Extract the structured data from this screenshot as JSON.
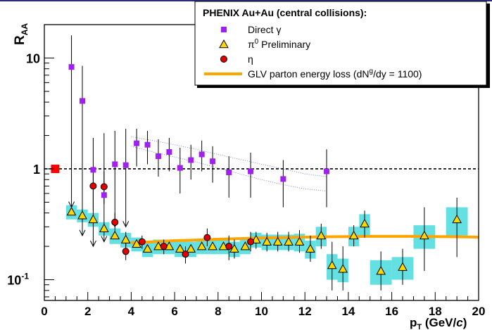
{
  "chart_data": {
    "type": "scatter",
    "title": "PHENIX Au+Au (central collisions):",
    "xlabel": "p_T (GeV/c)",
    "ylabel": "R_AA",
    "xlim": [
      0,
      20
    ],
    "ylim": [
      0.065,
      20
    ],
    "yscale": "log",
    "reference_line": 1,
    "x_ticks": [
      {
        "value": 0,
        "label": "0"
      },
      {
        "value": 2,
        "label": "2"
      },
      {
        "value": 4,
        "label": "4"
      },
      {
        "value": 6,
        "label": "6"
      },
      {
        "value": 8,
        "label": "8"
      },
      {
        "value": 10,
        "label": "10"
      },
      {
        "value": 12,
        "label": "12"
      },
      {
        "value": 14,
        "label": "14"
      },
      {
        "value": 16,
        "label": "16"
      },
      {
        "value": 18,
        "label": "18"
      },
      {
        "value": 20,
        "label": "20"
      }
    ],
    "y_ticks": [
      {
        "value": 0.1,
        "label": "10",
        "sup": "-1"
      },
      {
        "value": 1,
        "label": "1",
        "sup": ""
      },
      {
        "value": 10,
        "label": "10",
        "sup": ""
      }
    ],
    "legend": {
      "title": "PHENIX Au+Au (central collisions):",
      "entries": [
        {
          "label": "Direct γ",
          "marker": "square",
          "color": "#a020f0"
        },
        {
          "label": "π",
          "sup": "0",
          "label_after": " Preliminary",
          "marker": "triangle",
          "color": "#ffd700"
        },
        {
          "label": "η",
          "marker": "circle",
          "color": "#e00000"
        },
        {
          "label": "GLV parton energy loss (dN",
          "sup": "g",
          "label_after": "/dy = 1100)",
          "marker": "line",
          "color": "#ffa500"
        }
      ]
    },
    "norm_box": {
      "x": 0.5,
      "y": 1.0,
      "color": "#ff0000"
    },
    "series": [
      {
        "name": "Direct γ",
        "marker": "square",
        "color": "#a020f0",
        "points": [
          {
            "x": 1.25,
            "y": 8.3,
            "lo": 0.45,
            "hi": 16,
            "limit": true
          },
          {
            "x": 1.75,
            "y": 4.1,
            "lo": 0.25,
            "hi": 8.5,
            "limit": true
          },
          {
            "x": 2.25,
            "y": 0.98,
            "lo": 0.2,
            "hi": 1.9,
            "limit": true
          },
          {
            "x": 2.75,
            "y": 0.58,
            "lo": 0.22,
            "hi": 2.1,
            "limit": true
          },
          {
            "x": 3.25,
            "y": 1.1,
            "lo": 0.3,
            "hi": 2.2,
            "limit": true
          },
          {
            "x": 3.75,
            "y": 1.08,
            "lo": 0.3,
            "hi": 2.3,
            "limit": true
          },
          {
            "x": 4.25,
            "y": 1.7,
            "lo": 1.05,
            "hi": 2.3
          },
          {
            "x": 4.75,
            "y": 1.65,
            "lo": 1.1,
            "hi": 2.2
          },
          {
            "x": 5.25,
            "y": 1.3,
            "lo": 0.85,
            "hi": 1.85
          },
          {
            "x": 5.75,
            "y": 1.42,
            "lo": 0.95,
            "hi": 1.9
          },
          {
            "x": 6.25,
            "y": 1.02,
            "lo": 0.6,
            "hi": 1.55
          },
          {
            "x": 6.75,
            "y": 1.2,
            "lo": 0.8,
            "hi": 1.65
          },
          {
            "x": 7.25,
            "y": 1.35,
            "lo": 0.95,
            "hi": 1.8
          },
          {
            "x": 7.75,
            "y": 1.17,
            "lo": 0.75,
            "hi": 1.6
          },
          {
            "x": 8.5,
            "y": 0.93,
            "lo": 0.55,
            "hi": 1.3
          },
          {
            "x": 9.5,
            "y": 0.95,
            "lo": 0.55,
            "hi": 1.4
          },
          {
            "x": 11.0,
            "y": 0.81,
            "lo": 0.45,
            "hi": 1.2
          },
          {
            "x": 13.0,
            "y": 0.95,
            "lo": 0.45,
            "hi": 1.5
          }
        ]
      },
      {
        "name": "π0 Preliminary",
        "marker": "triangle",
        "color": "#ffd700",
        "band_color": "#30d5d8",
        "points": [
          {
            "x": 1.25,
            "y": 0.41,
            "syst": 0.06
          },
          {
            "x": 1.75,
            "y": 0.38,
            "syst": 0.05
          },
          {
            "x": 2.25,
            "y": 0.35,
            "syst": 0.05
          },
          {
            "x": 2.75,
            "y": 0.29,
            "syst": 0.04
          },
          {
            "x": 3.25,
            "y": 0.25,
            "syst": 0.04
          },
          {
            "x": 3.75,
            "y": 0.23,
            "syst": 0.035,
            "lo": 0.2,
            "hi": 0.27
          },
          {
            "x": 4.25,
            "y": 0.21,
            "syst": 0.03
          },
          {
            "x": 4.75,
            "y": 0.19,
            "syst": 0.03
          },
          {
            "x": 5.25,
            "y": 0.2,
            "syst": 0.03
          },
          {
            "x": 5.75,
            "y": 0.2,
            "syst": 0.03
          },
          {
            "x": 6.25,
            "y": 0.19,
            "syst": 0.03
          },
          {
            "x": 6.75,
            "y": 0.19,
            "syst": 0.03
          },
          {
            "x": 7.25,
            "y": 0.2,
            "syst": 0.03
          },
          {
            "x": 7.75,
            "y": 0.2,
            "syst": 0.03
          },
          {
            "x": 8.25,
            "y": 0.2,
            "syst": 0.03
          },
          {
            "x": 8.75,
            "y": 0.19,
            "syst": 0.03,
            "lo": 0.155,
            "hi": 0.23
          },
          {
            "x": 9.25,
            "y": 0.2,
            "syst": 0.03
          },
          {
            "x": 9.75,
            "y": 0.23,
            "syst": 0.035,
            "lo": 0.19,
            "hi": 0.27
          },
          {
            "x": 10.25,
            "y": 0.22,
            "syst": 0.035,
            "lo": 0.18,
            "hi": 0.265
          },
          {
            "x": 10.75,
            "y": 0.22,
            "syst": 0.035,
            "lo": 0.18,
            "hi": 0.27
          },
          {
            "x": 11.25,
            "y": 0.22,
            "syst": 0.035,
            "lo": 0.18,
            "hi": 0.27
          },
          {
            "x": 11.75,
            "y": 0.22,
            "syst": 0.04,
            "lo": 0.175,
            "hi": 0.28
          },
          {
            "x": 12.25,
            "y": 0.19,
            "syst": 0.035,
            "lo": 0.145,
            "hi": 0.25
          },
          {
            "x": 12.75,
            "y": 0.25,
            "syst": 0.05,
            "lo": 0.19,
            "hi": 0.32
          },
          {
            "x": 13.25,
            "y": 0.135,
            "syst": 0.035,
            "lo": 0.08,
            "hi": 0.22
          },
          {
            "x": 13.75,
            "y": 0.125,
            "syst": 0.03,
            "lo": 0.08,
            "hi": 0.2
          },
          {
            "x": 14.25,
            "y": 0.25,
            "syst": 0.05,
            "lo": 0.2,
            "hi": 0.31
          },
          {
            "x": 14.75,
            "y": 0.32,
            "syst": 0.07,
            "lo": 0.24,
            "hi": 0.42
          },
          {
            "x": 15.5,
            "y": 0.12,
            "syst": 0.03,
            "lo": 0.08,
            "hi": 0.18
          },
          {
            "x": 16.5,
            "y": 0.13,
            "syst": 0.03,
            "lo": 0.09,
            "hi": 0.19
          },
          {
            "x": 17.5,
            "y": 0.25,
            "syst": 0.06,
            "lo": 0.12,
            "hi": 0.45
          },
          {
            "x": 19.0,
            "y": 0.35,
            "syst": 0.1,
            "lo": 0.16,
            "hi": 0.55
          }
        ]
      },
      {
        "name": "η",
        "marker": "circle",
        "color": "#e00000",
        "points": [
          {
            "x": 2.25,
            "y": 0.7,
            "lo": 0.42,
            "hi": 1.0
          },
          {
            "x": 2.75,
            "y": 0.69,
            "lo": 0.48,
            "hi": 0.95
          },
          {
            "x": 3.25,
            "y": 0.33,
            "lo": 0.27,
            "hi": 0.4
          },
          {
            "x": 3.75,
            "y": 0.18,
            "lo": 0.15,
            "hi": 0.22
          },
          {
            "x": 4.5,
            "y": 0.22,
            "lo": 0.19,
            "hi": 0.25
          },
          {
            "x": 5.5,
            "y": 0.2,
            "lo": 0.17,
            "hi": 0.23
          },
          {
            "x": 6.5,
            "y": 0.17,
            "lo": 0.14,
            "hi": 0.2
          },
          {
            "x": 7.5,
            "y": 0.24,
            "lo": 0.2,
            "hi": 0.29
          },
          {
            "x": 8.5,
            "y": 0.2,
            "lo": 0.15,
            "hi": 0.25
          },
          {
            "x": 9.5,
            "y": 0.22,
            "lo": 0.18,
            "hi": 0.27
          }
        ]
      }
    ],
    "glv_curve": {
      "name": "GLV parton energy loss (dNg/dy = 1100)",
      "color": "#ffa500",
      "x": [
        4.0,
        5.0,
        6.0,
        7.0,
        8.0,
        9.0,
        10.0,
        11.0,
        12.0,
        13.0,
        14.0,
        15.0,
        16.0,
        17.0,
        18.0,
        19.0,
        20.0
      ],
      "y": [
        0.215,
        0.22,
        0.225,
        0.228,
        0.232,
        0.235,
        0.238,
        0.24,
        0.242,
        0.244,
        0.245,
        0.246,
        0.246,
        0.246,
        0.245,
        0.244,
        0.242
      ]
    },
    "theory_band": {
      "name": "direct photon expectation band",
      "color": "#8080e0",
      "x": [
        4.0,
        5.0,
        6.0,
        7.0,
        8.0,
        9.0,
        10.0,
        11.0,
        12.0,
        13.0
      ],
      "upper": [
        1.95,
        1.8,
        1.65,
        1.5,
        1.35,
        1.22,
        1.1,
        1.0,
        0.9,
        0.85
      ],
      "lower": [
        1.6,
        1.42,
        1.28,
        1.15,
        1.02,
        0.9,
        0.8,
        0.72,
        0.66,
        0.63
      ]
    }
  }
}
